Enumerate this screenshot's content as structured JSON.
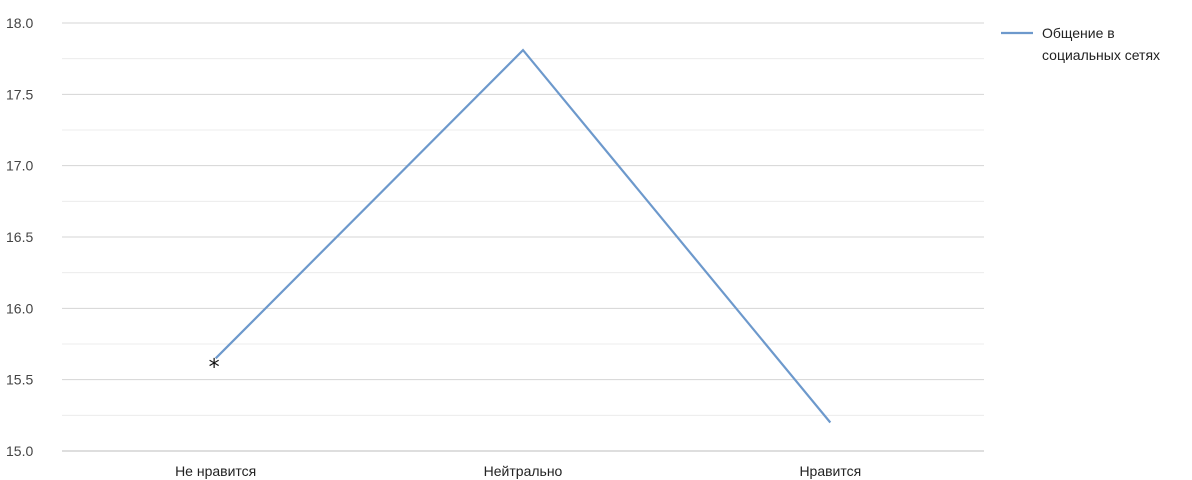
{
  "chart_data": {
    "type": "line",
    "categories": [
      "Не нравится",
      "Нейтрально",
      "Нравится"
    ],
    "series": [
      {
        "name": "Общение в социальных сетях",
        "legend_lines": [
          "Общение в",
          "социальных сетях"
        ],
        "values": [
          15.65,
          17.81,
          15.2
        ],
        "color": "#6d99cc"
      }
    ],
    "ylim": [
      15.0,
      18.0
    ],
    "yticks": [
      "15.0",
      "15.5",
      "16.0",
      "16.5",
      "17.0",
      "17.5",
      "18.0"
    ],
    "grid": true,
    "minor_grid": true,
    "legend_position": "top-right",
    "annotations": [
      {
        "text": "*",
        "category_index": 0
      }
    ]
  }
}
